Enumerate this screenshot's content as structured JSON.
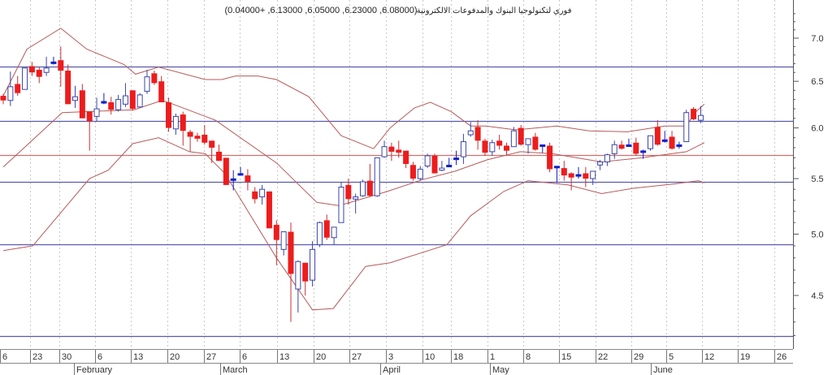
{
  "chart_data": {
    "type": "candlestick",
    "title": {
      "name": "فوري لتكنولوجيا البنوك والمدفوعات الالكترونية",
      "ohlc_summary": "(6.08000, 6.23000, 6.05000, 6.13000, +0.04000)"
    },
    "y_axis": {
      "scale": "log",
      "range": [
        4.2,
        7.25
      ],
      "tick_labels": [
        "7.0",
        "6.5",
        "6.0",
        "5.5",
        "5.0",
        "4.5"
      ],
      "tick_values": [
        7.0,
        6.5,
        6.0,
        5.5,
        5.0,
        4.5
      ],
      "minor_tick_step": 0.1
    },
    "x_axis": {
      "day_labels": [
        "6",
        "23",
        "30",
        "6",
        "13",
        "20",
        "27",
        "6",
        "13",
        "20",
        "27",
        "3",
        "10",
        "18",
        "1",
        "8",
        "15",
        "22",
        "29",
        "5",
        "12",
        "19",
        "26"
      ],
      "month_labels": [
        "February",
        "March",
        "April",
        "May",
        "June"
      ]
    },
    "horizontal_levels": [
      {
        "value": 6.67,
        "color": "#5a5aae"
      },
      {
        "value": 6.07,
        "color": "#5a5aae"
      },
      {
        "value": 5.73,
        "color": "#d07070"
      },
      {
        "value": 5.47,
        "color": "#5a5aae"
      },
      {
        "value": 4.91,
        "color": "#5a5aae"
      },
      {
        "value": 4.2,
        "color": "#5a5aae"
      }
    ],
    "colors": {
      "up_outline": "#3a46a8",
      "down_fill": "#ee1c1c",
      "doji": "#1020c8",
      "band": "#b85a5a",
      "grid": "#c8c8c8"
    },
    "candles_ohlc": [
      [
        6.34,
        6.36,
        6.25,
        6.29
      ],
      [
        6.29,
        6.61,
        6.23,
        6.44
      ],
      [
        6.47,
        6.56,
        6.34,
        6.37
      ],
      [
        6.41,
        6.65,
        6.41,
        6.65
      ],
      [
        6.67,
        6.72,
        6.56,
        6.6
      ],
      [
        6.63,
        6.66,
        6.48,
        6.55
      ],
      [
        6.6,
        6.78,
        6.56,
        6.65
      ],
      [
        6.71,
        6.78,
        6.69,
        6.71
      ],
      [
        6.74,
        6.9,
        6.44,
        6.62
      ],
      [
        6.62,
        6.69,
        6.25,
        6.25
      ],
      [
        6.29,
        6.45,
        6.21,
        6.33
      ],
      [
        6.4,
        6.47,
        6.1,
        6.1
      ],
      [
        6.17,
        6.17,
        5.77,
        6.07
      ],
      [
        6.12,
        6.32,
        6.07,
        6.2
      ],
      [
        6.27,
        6.37,
        6.25,
        6.27
      ],
      [
        6.27,
        6.33,
        6.14,
        6.19
      ],
      [
        6.19,
        6.35,
        6.17,
        6.3
      ],
      [
        6.25,
        6.48,
        6.22,
        6.34
      ],
      [
        6.4,
        6.4,
        6.18,
        6.2
      ],
      [
        6.22,
        6.37,
        6.21,
        6.35
      ],
      [
        6.39,
        6.63,
        6.36,
        6.55
      ],
      [
        6.59,
        6.62,
        6.46,
        6.48
      ],
      [
        6.5,
        6.56,
        6.27,
        6.27
      ],
      [
        6.27,
        6.32,
        5.96,
        6.0
      ],
      [
        5.99,
        6.15,
        5.93,
        6.12
      ],
      [
        6.14,
        6.17,
        5.82,
        5.97
      ],
      [
        5.96,
        5.98,
        5.76,
        5.91
      ],
      [
        5.92,
        5.95,
        5.86,
        5.89
      ],
      [
        5.93,
        6.03,
        5.83,
        5.85
      ],
      [
        5.87,
        5.87,
        5.65,
        5.8
      ],
      [
        5.76,
        5.83,
        5.67,
        5.67
      ],
      [
        5.7,
        5.7,
        5.44,
        5.44
      ],
      [
        5.49,
        5.58,
        5.39,
        5.49
      ],
      [
        5.54,
        5.61,
        5.53,
        5.54
      ],
      [
        5.53,
        5.59,
        5.39,
        5.47
      ],
      [
        5.38,
        5.42,
        5.27,
        5.31
      ],
      [
        5.33,
        5.44,
        5.26,
        5.4
      ],
      [
        5.38,
        5.38,
        5.05,
        5.05
      ],
      [
        5.08,
        5.12,
        4.74,
        4.95
      ],
      [
        4.87,
        5.02,
        4.82,
        5.02
      ],
      [
        5.02,
        5.1,
        4.3,
        4.67
      ],
      [
        4.55,
        4.78,
        4.37,
        4.77
      ],
      [
        4.76,
        4.76,
        4.5,
        4.61
      ],
      [
        4.62,
        4.94,
        4.57,
        4.87
      ],
      [
        4.91,
        5.11,
        4.89,
        5.1
      ],
      [
        5.12,
        5.17,
        4.95,
        4.97
      ],
      [
        4.97,
        5.06,
        4.91,
        5.06
      ],
      [
        5.1,
        5.47,
        5.1,
        5.42
      ],
      [
        5.44,
        5.5,
        5.26,
        5.31
      ],
      [
        5.31,
        5.36,
        5.18,
        5.33
      ],
      [
        5.34,
        5.49,
        5.33,
        5.47
      ],
      [
        5.48,
        5.64,
        5.33,
        5.34
      ],
      [
        5.34,
        5.7,
        5.33,
        5.7
      ],
      [
        5.71,
        5.87,
        5.7,
        5.81
      ],
      [
        5.81,
        5.85,
        5.67,
        5.76
      ],
      [
        5.78,
        5.87,
        5.7,
        5.75
      ],
      [
        5.77,
        5.77,
        5.6,
        5.64
      ],
      [
        5.63,
        5.66,
        5.48,
        5.5
      ],
      [
        5.5,
        5.62,
        5.48,
        5.59
      ],
      [
        5.62,
        5.74,
        5.6,
        5.72
      ],
      [
        5.72,
        5.74,
        5.55,
        5.55
      ],
      [
        5.58,
        5.67,
        5.57,
        5.6
      ],
      [
        5.62,
        5.7,
        5.61,
        5.62
      ],
      [
        5.69,
        5.77,
        5.63,
        5.69
      ],
      [
        5.71,
        5.94,
        5.64,
        5.86
      ],
      [
        5.93,
        6.06,
        5.91,
        5.97
      ],
      [
        6.01,
        6.08,
        5.78,
        5.87
      ],
      [
        5.87,
        5.89,
        5.72,
        5.75
      ],
      [
        5.76,
        5.88,
        5.72,
        5.85
      ],
      [
        5.87,
        5.93,
        5.78,
        5.82
      ],
      [
        5.82,
        5.85,
        5.73,
        5.77
      ],
      [
        5.81,
        6.01,
        5.81,
        5.97
      ],
      [
        6.0,
        6.03,
        5.82,
        5.83
      ],
      [
        5.83,
        5.89,
        5.74,
        5.89
      ],
      [
        5.91,
        5.95,
        5.77,
        5.78
      ],
      [
        5.82,
        5.82,
        5.75,
        5.82
      ],
      [
        5.82,
        5.85,
        5.56,
        5.59
      ],
      [
        5.61,
        5.61,
        5.46,
        5.61
      ],
      [
        5.6,
        5.67,
        5.48,
        5.53
      ],
      [
        5.55,
        5.56,
        5.39,
        5.51
      ],
      [
        5.53,
        5.61,
        5.5,
        5.53
      ],
      [
        5.55,
        5.61,
        5.42,
        5.5
      ],
      [
        5.5,
        5.57,
        5.44,
        5.57
      ],
      [
        5.63,
        5.68,
        5.58,
        5.66
      ],
      [
        5.66,
        5.74,
        5.62,
        5.73
      ],
      [
        5.74,
        5.87,
        5.69,
        5.83
      ],
      [
        5.83,
        5.87,
        5.78,
        5.79
      ],
      [
        5.82,
        5.89,
        5.81,
        5.82
      ],
      [
        5.85,
        5.9,
        5.72,
        5.74
      ],
      [
        5.76,
        5.78,
        5.69,
        5.76
      ],
      [
        5.79,
        5.92,
        5.77,
        5.92
      ],
      [
        6.01,
        6.08,
        5.82,
        5.83
      ],
      [
        5.87,
        5.97,
        5.85,
        5.87
      ],
      [
        5.91,
        5.97,
        5.78,
        5.79
      ],
      [
        5.82,
        5.86,
        5.79,
        5.82
      ],
      [
        5.86,
        6.19,
        5.86,
        6.16
      ],
      [
        6.2,
        6.22,
        6.08,
        6.09
      ],
      [
        6.08,
        6.23,
        6.05,
        6.13
      ]
    ],
    "bollinger": {
      "upper": [
        [
          0,
          6.34
        ],
        [
          3.3,
          6.87
        ],
        [
          8,
          7.12
        ],
        [
          11.6,
          6.87
        ],
        [
          16.8,
          6.69
        ],
        [
          18.4,
          6.58
        ],
        [
          21.6,
          6.66
        ],
        [
          28.1,
          6.52
        ],
        [
          30.4,
          6.52
        ],
        [
          32.3,
          6.56
        ],
        [
          35.4,
          6.56
        ],
        [
          38,
          6.52
        ],
        [
          42.5,
          6.33
        ],
        [
          47,
          5.92
        ],
        [
          51.5,
          5.79
        ],
        [
          53.8,
          6.0
        ],
        [
          57.2,
          6.21
        ],
        [
          59.4,
          6.27
        ],
        [
          62.3,
          6.17
        ],
        [
          65,
          6.02
        ],
        [
          67.1,
          6.02
        ],
        [
          71.3,
          5.98
        ],
        [
          77,
          6.02
        ],
        [
          81.5,
          5.97
        ],
        [
          86.8,
          5.96
        ],
        [
          92,
          6.02
        ],
        [
          95,
          6.02
        ],
        [
          96.2,
          6.16
        ],
        [
          97.5,
          6.25
        ]
      ],
      "middle": [
        [
          0,
          5.61
        ],
        [
          8.2,
          6.16
        ],
        [
          18.2,
          6.19
        ],
        [
          22.1,
          6.29
        ],
        [
          23.6,
          6.25
        ],
        [
          29.5,
          6.08
        ],
        [
          38,
          5.65
        ],
        [
          43.6,
          5.28
        ],
        [
          46.7,
          5.25
        ],
        [
          53.4,
          5.38
        ],
        [
          58.3,
          5.49
        ],
        [
          62.8,
          5.57
        ],
        [
          67.3,
          5.68
        ],
        [
          71.9,
          5.76
        ],
        [
          76.4,
          5.74
        ],
        [
          83.2,
          5.66
        ],
        [
          88.8,
          5.7
        ],
        [
          95,
          5.76
        ],
        [
          97.5,
          5.85
        ]
      ],
      "lower": [
        [
          0,
          4.86
        ],
        [
          4.1,
          4.9
        ],
        [
          12,
          5.5
        ],
        [
          14.6,
          5.58
        ],
        [
          18,
          5.84
        ],
        [
          21.6,
          5.9
        ],
        [
          25.9,
          5.76
        ],
        [
          28.1,
          5.74
        ],
        [
          30.8,
          5.55
        ],
        [
          38,
          4.8
        ],
        [
          43,
          4.39
        ],
        [
          45.9,
          4.4
        ],
        [
          50.4,
          4.73
        ],
        [
          53.8,
          4.76
        ],
        [
          61.7,
          4.91
        ],
        [
          65,
          5.16
        ],
        [
          69.6,
          5.38
        ],
        [
          73,
          5.48
        ],
        [
          78.6,
          5.44
        ],
        [
          83.2,
          5.36
        ],
        [
          87.7,
          5.41
        ],
        [
          93.3,
          5.45
        ],
        [
          96.7,
          5.48
        ],
        [
          97.5,
          5.46
        ]
      ]
    }
  }
}
